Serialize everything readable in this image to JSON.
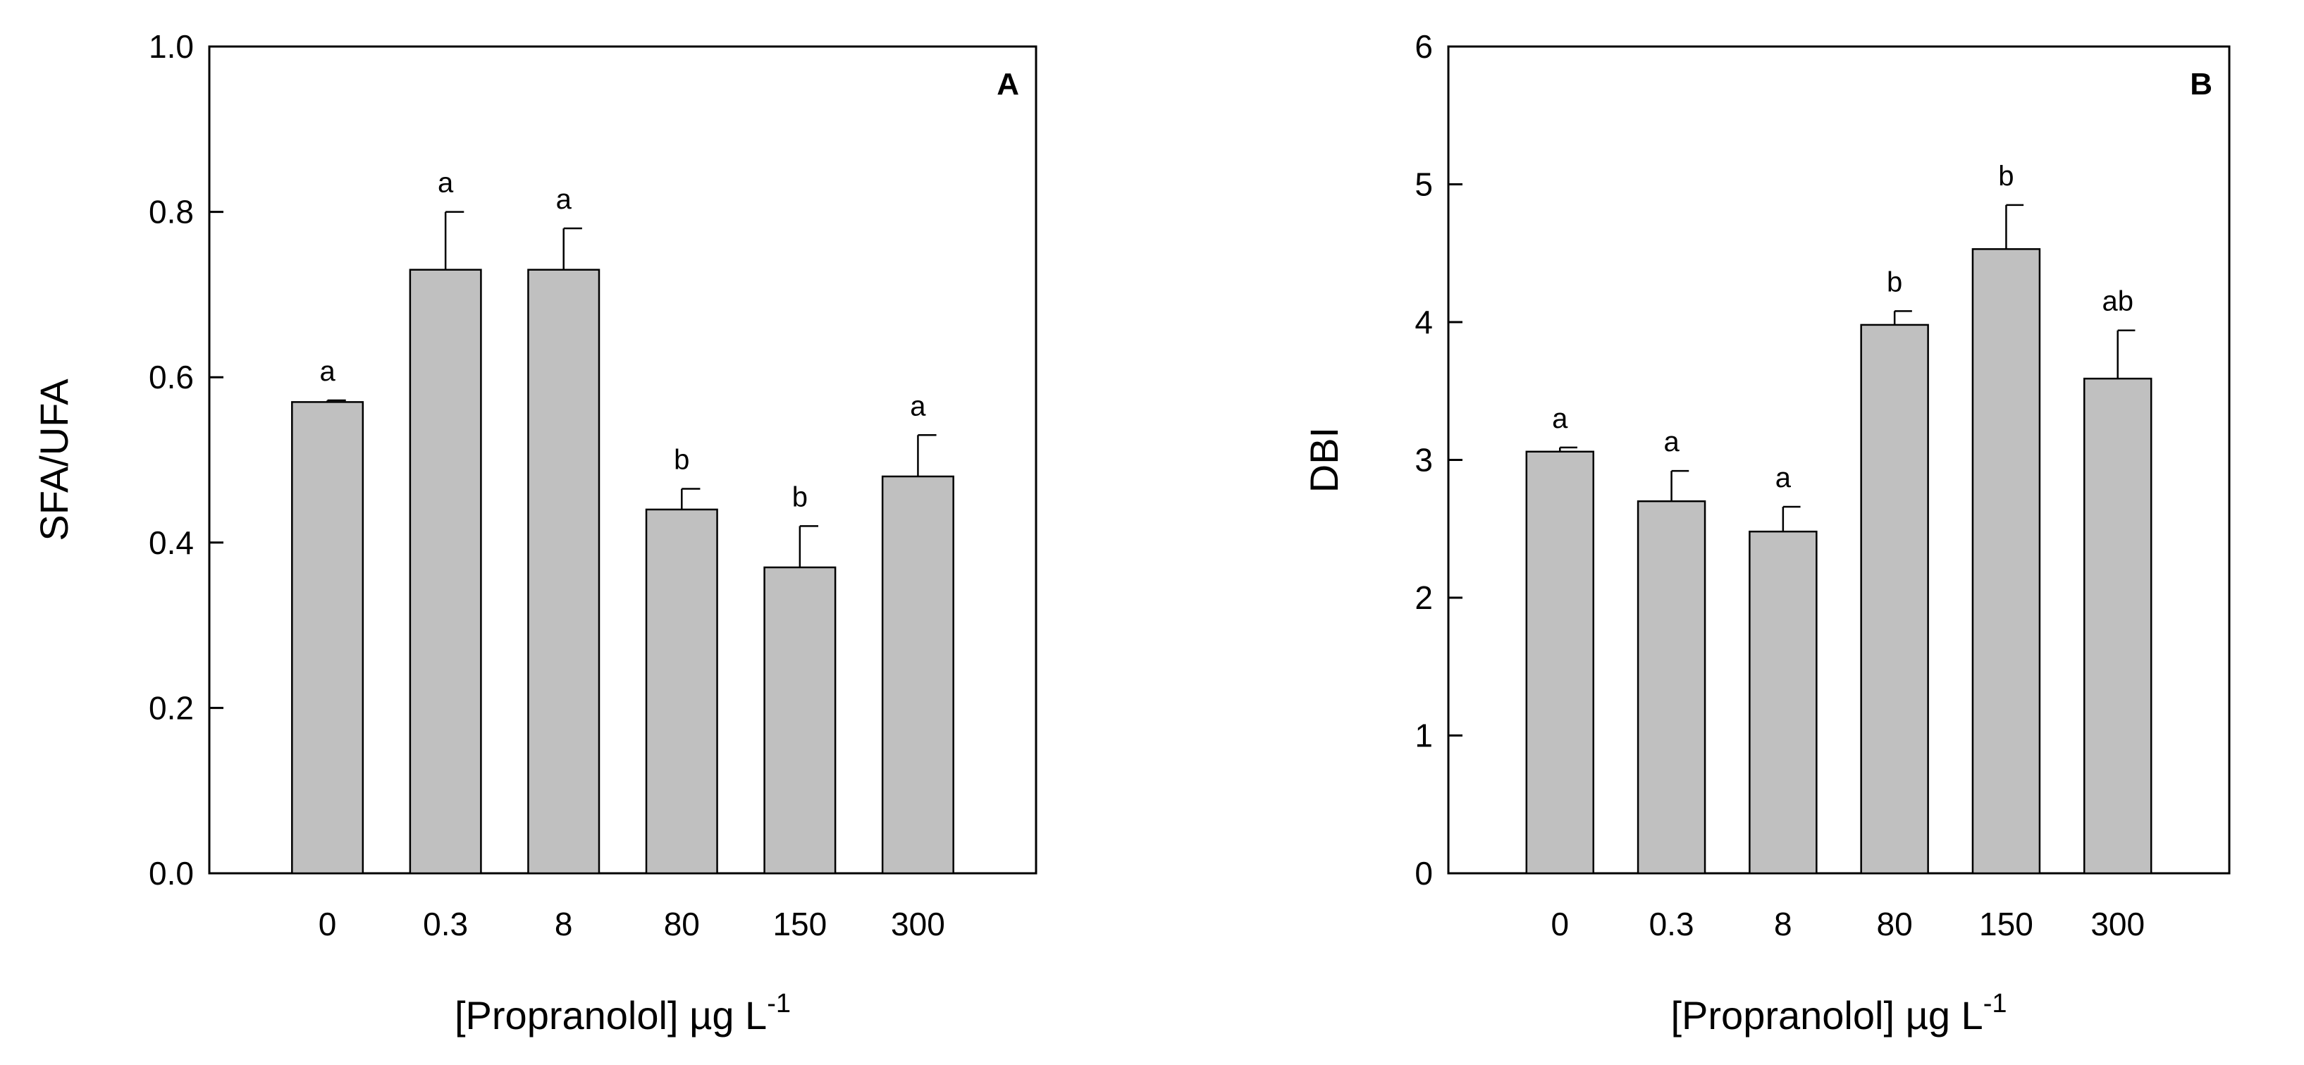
{
  "chart_data": [
    {
      "type": "bar",
      "panel_label": "A",
      "categories": [
        "0",
        "0.3",
        "8",
        "80",
        "150",
        "300"
      ],
      "values": [
        0.57,
        0.73,
        0.73,
        0.44,
        0.37,
        0.48
      ],
      "errors": [
        0.002,
        0.07,
        0.05,
        0.025,
        0.05,
        0.05
      ],
      "significance": [
        "a",
        "a",
        "a",
        "b",
        "b",
        "a"
      ],
      "title": "",
      "xlabel_main": "[Propranolol] ",
      "xlabel_unit": "µg L",
      "xlabel_sup": "-1",
      "ylabel": "SFA/UFA",
      "ylim": [
        0,
        1.0
      ],
      "yticks": [
        0.0,
        0.2,
        0.4,
        0.6,
        0.8,
        1.0
      ],
      "ytick_labels": [
        "0.0",
        "0.2",
        "0.4",
        "0.6",
        "0.8",
        "1.0"
      ],
      "bar_color": "#c0c0c0"
    },
    {
      "type": "bar",
      "panel_label": "B",
      "categories": [
        "0",
        "0.3",
        "8",
        "80",
        "150",
        "300"
      ],
      "values": [
        3.06,
        2.7,
        2.48,
        3.98,
        4.53,
        3.59
      ],
      "errors": [
        0.03,
        0.22,
        0.18,
        0.1,
        0.32,
        0.35
      ],
      "significance": [
        "a",
        "a",
        "a",
        "b",
        "b",
        "ab"
      ],
      "title": "",
      "xlabel_main": "[Propranolol] ",
      "xlabel_unit": "µg L",
      "xlabel_sup": "-1",
      "ylabel": "DBI",
      "ylim": [
        0,
        6
      ],
      "yticks": [
        0,
        1,
        2,
        3,
        4,
        5,
        6
      ],
      "ytick_labels": [
        "0",
        "1",
        "2",
        "3",
        "4",
        "5",
        "6"
      ],
      "bar_color": "#c0c0c0"
    }
  ]
}
